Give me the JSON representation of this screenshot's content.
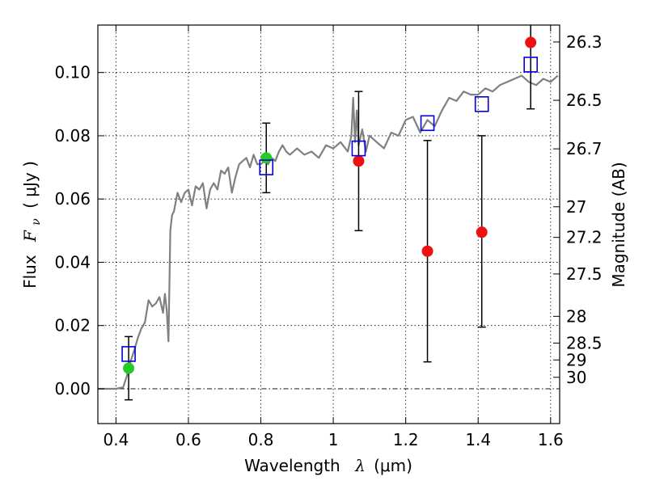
{
  "chart_data": {
    "type": "scatter",
    "xlabel": "Wavelength",
    "xlabel_symbol": "λ",
    "xlabel_unit": "(μm)",
    "ylabel": "Flux",
    "ylabel_symbol": "F",
    "ylabel_sub": "ν",
    "ylabel_unit": "( μJy )",
    "y2label": "Magnitude (AB)",
    "xlim": [
      0.35,
      1.625
    ],
    "ylim": [
      -0.011,
      0.115
    ],
    "grid": true,
    "x_ticks": [
      0.4,
      0.6,
      0.8,
      1.0,
      1.2,
      1.4,
      1.6
    ],
    "x_tick_labels": [
      "0.4",
      "0.6",
      "0.8",
      "1",
      "1.2",
      "1.4",
      "1.6"
    ],
    "y_ticks": [
      0.0,
      0.02,
      0.04,
      0.06,
      0.08,
      0.1
    ],
    "y_tick_labels": [
      "0.00",
      "0.02",
      "0.04",
      "0.06",
      "0.08",
      "0.10"
    ],
    "mag_ticks": [
      26.3,
      26.5,
      26.7,
      27.0,
      27.2,
      27.5,
      28.0,
      28.5,
      29.0,
      30.0
    ],
    "mag_tick_labels": [
      "26.3",
      "26.5",
      "26.7",
      "27",
      "27.2",
      "27.5",
      "28",
      "28.5",
      "29",
      "30"
    ],
    "model_spectrum": {
      "color": "#808080",
      "x": [
        0.35,
        0.4,
        0.42,
        0.43,
        0.44,
        0.45,
        0.46,
        0.47,
        0.48,
        0.49,
        0.5,
        0.51,
        0.52,
        0.53,
        0.535,
        0.54,
        0.545,
        0.55,
        0.555,
        0.56,
        0.57,
        0.58,
        0.59,
        0.6,
        0.61,
        0.62,
        0.63,
        0.64,
        0.65,
        0.66,
        0.67,
        0.68,
        0.69,
        0.7,
        0.71,
        0.72,
        0.73,
        0.74,
        0.75,
        0.76,
        0.77,
        0.78,
        0.79,
        0.8,
        0.81,
        0.82,
        0.83,
        0.84,
        0.85,
        0.86,
        0.87,
        0.88,
        0.9,
        0.92,
        0.94,
        0.96,
        0.98,
        1.0,
        1.02,
        1.04,
        1.05,
        1.055,
        1.06,
        1.065,
        1.07,
        1.08,
        1.09,
        1.1,
        1.12,
        1.14,
        1.16,
        1.18,
        1.2,
        1.22,
        1.24,
        1.26,
        1.28,
        1.3,
        1.32,
        1.34,
        1.36,
        1.38,
        1.4,
        1.42,
        1.44,
        1.46,
        1.48,
        1.5,
        1.52,
        1.54,
        1.56,
        1.58,
        1.6,
        1.62
      ],
      "y": [
        0.0,
        0.0,
        0.0005,
        0.004,
        0.0085,
        0.012,
        0.016,
        0.019,
        0.021,
        0.028,
        0.026,
        0.027,
        0.029,
        0.024,
        0.03,
        0.025,
        0.015,
        0.05,
        0.055,
        0.056,
        0.062,
        0.059,
        0.062,
        0.063,
        0.058,
        0.064,
        0.063,
        0.065,
        0.057,
        0.063,
        0.065,
        0.063,
        0.069,
        0.068,
        0.07,
        0.062,
        0.067,
        0.071,
        0.072,
        0.073,
        0.07,
        0.074,
        0.071,
        0.071,
        0.072,
        0.071,
        0.073,
        0.072,
        0.075,
        0.077,
        0.075,
        0.074,
        0.076,
        0.074,
        0.075,
        0.073,
        0.077,
        0.076,
        0.078,
        0.075,
        0.08,
        0.092,
        0.078,
        0.088,
        0.077,
        0.082,
        0.075,
        0.08,
        0.078,
        0.076,
        0.081,
        0.08,
        0.085,
        0.086,
        0.081,
        0.085,
        0.083,
        0.088,
        0.092,
        0.091,
        0.094,
        0.093,
        0.093,
        0.095,
        0.094,
        0.096,
        0.097,
        0.098,
        0.099,
        0.097,
        0.096,
        0.098,
        0.097,
        0.099
      ]
    },
    "series": [
      {
        "marker": "circle",
        "color": "#ee1111",
        "x": [
          1.07,
          1.26,
          1.41,
          1.545
        ],
        "y": [
          0.072,
          0.0435,
          0.0495,
          0.1095
        ],
        "yerr_low": [
          0.05,
          0.0085,
          0.0195,
          0.0885
        ],
        "yerr_high": [
          0.094,
          0.0785,
          0.08,
          0.1165
        ]
      },
      {
        "marker": "circle",
        "color": "#22cc22",
        "x": [
          0.435,
          0.815
        ],
        "y": [
          0.0065,
          0.073
        ],
        "yerr_low": [
          -0.0035,
          0.062
        ],
        "yerr_high": [
          0.0165,
          0.084
        ]
      },
      {
        "marker": "square-open",
        "color": "#0000dd",
        "x": [
          0.435,
          0.815,
          1.07,
          1.26,
          1.41,
          1.545
        ],
        "y": [
          0.011,
          0.07,
          0.076,
          0.084,
          0.09,
          0.1025
        ]
      }
    ]
  }
}
